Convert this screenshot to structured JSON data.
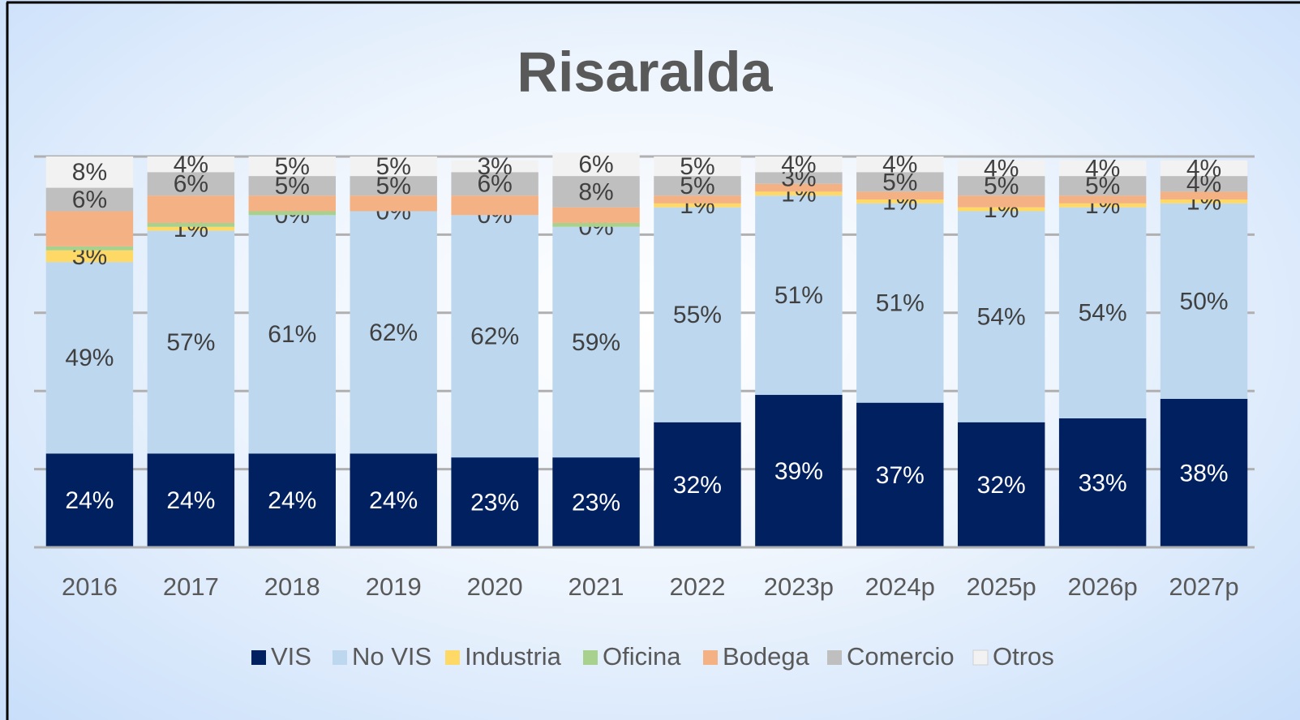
{
  "chart_data": {
    "type": "stacked_bar",
    "title": "Risaralda",
    "categories": [
      "2016",
      "2017",
      "2018",
      "2019",
      "2020",
      "2021",
      "2022",
      "2023p",
      "2024p",
      "2025p",
      "2026p",
      "2027p"
    ],
    "ylim": [
      0,
      100
    ],
    "yticks": [
      0,
      20,
      40,
      60,
      80,
      100
    ],
    "grid": true,
    "legend": "bottom",
    "series": [
      {
        "name": "VIS",
        "color": "#002060",
        "values": [
          24,
          24,
          24,
          24,
          23,
          23,
          32,
          39,
          37,
          32,
          33,
          38
        ],
        "value_labels": [
          "24%",
          "24%",
          "24%",
          "24%",
          "23%",
          "23%",
          "32%",
          "39%",
          "37%",
          "32%",
          "33%",
          "38%"
        ]
      },
      {
        "name": "No VIS",
        "color": "#bdd7ee",
        "values": [
          49,
          57,
          61,
          62,
          62,
          59,
          55,
          51,
          51,
          54,
          54,
          50
        ],
        "value_labels": [
          "49%",
          "57%",
          "61%",
          "62%",
          "62%",
          "59%",
          "55%",
          "51%",
          "51%",
          "54%",
          "54%",
          "50%"
        ]
      },
      {
        "name": "Industria",
        "color": "#ffd966",
        "values": [
          3,
          1,
          0,
          0,
          0,
          0,
          1,
          1,
          1,
          1,
          1,
          1
        ],
        "value_labels": [
          "3%",
          "1%",
          "0%",
          "0%",
          "0%",
          "0%",
          "1%",
          "1%",
          "1%",
          "1%",
          "1%",
          "1%"
        ]
      },
      {
        "name": "Oficina",
        "color": "#a9d18e",
        "values": [
          1,
          1,
          1,
          0,
          0,
          1,
          0,
          0,
          0,
          0,
          0,
          0
        ],
        "value_labels": [
          null,
          null,
          null,
          null,
          null,
          null,
          null,
          null,
          null,
          null,
          null,
          null
        ]
      },
      {
        "name": "Bodega",
        "color": "#f4b183",
        "values": [
          9,
          7,
          4,
          4,
          5,
          4,
          2,
          2,
          2,
          3,
          2,
          2
        ],
        "value_labels": [
          null,
          null,
          null,
          null,
          null,
          null,
          null,
          null,
          null,
          null,
          null,
          null
        ]
      },
      {
        "name": "Comercio",
        "color": "#bfbfbf",
        "values": [
          6,
          6,
          5,
          5,
          6,
          8,
          5,
          3,
          5,
          5,
          5,
          4
        ],
        "value_labels": [
          "6%",
          "6%",
          "5%",
          "5%",
          "6%",
          "8%",
          "5%",
          "3%",
          "5%",
          "5%",
          "5%",
          "4%"
        ]
      },
      {
        "name": "Otros",
        "color": "#f2f2f2",
        "values": [
          8,
          4,
          5,
          5,
          3,
          6,
          5,
          4,
          4,
          4,
          4,
          4
        ],
        "value_labels": [
          "8%",
          "4%",
          "5%",
          "5%",
          "3%",
          "6%",
          "5%",
          "4%",
          "4%",
          "4%",
          "4%",
          "4%"
        ]
      }
    ]
  }
}
